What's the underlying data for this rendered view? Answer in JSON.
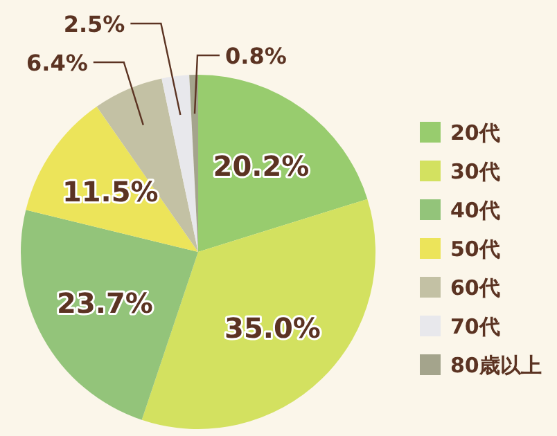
{
  "chart_data": {
    "type": "pie",
    "categories": [
      "20代",
      "30代",
      "40代",
      "50代",
      "60代",
      "70代",
      "80歳以上"
    ],
    "values": [
      20.2,
      35.0,
      23.7,
      11.5,
      6.4,
      2.5,
      0.8
    ],
    "value_labels": [
      "20.2%",
      "35.0%",
      "23.7%",
      "11.5%",
      "6.4%",
      "2.5%",
      "0.8%"
    ],
    "colors": [
      "#98cc6e",
      "#d3e160",
      "#93c47a",
      "#ece45a",
      "#c3c1a4",
      "#e8e8ec",
      "#a4a48c"
    ],
    "legend": "right"
  }
}
